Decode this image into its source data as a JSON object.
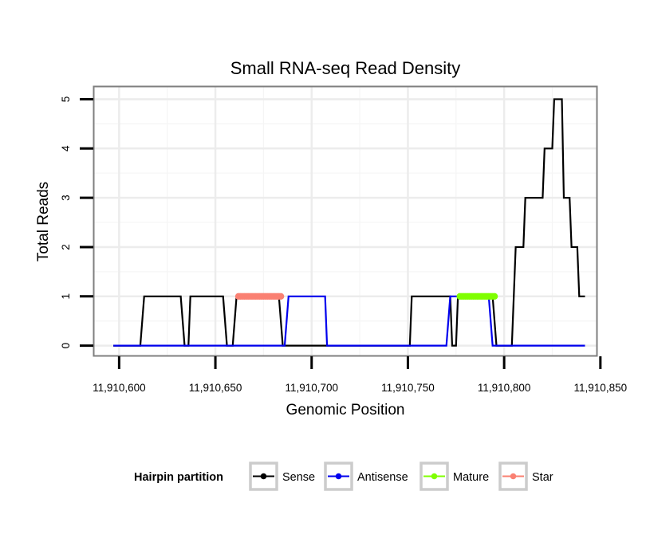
{
  "chart_data": {
    "type": "line",
    "title": "Small RNA-seq Read Density",
    "xlabel": "Genomic Position",
    "ylabel": "Total Reads",
    "xlim": [
      11910587,
      11910848
    ],
    "ylim": [
      -0.2,
      5.25
    ],
    "x_ticks": [
      11910600,
      11910650,
      11910700,
      11910750,
      11910800,
      11910850
    ],
    "x_tick_labels": [
      "11,910,600",
      "11,910,650",
      "11,910,700",
      "11,910,750",
      "11,910,800",
      "11,910,850"
    ],
    "y_ticks": [
      0,
      1,
      2,
      3,
      4,
      5
    ],
    "y_tick_labels": [
      "0",
      "1",
      "2",
      "3",
      "4",
      "5"
    ],
    "grid": true,
    "legend": {
      "title": "Hairpin partition",
      "position": "bottom",
      "entries": [
        "Sense",
        "Antisense",
        "Mature",
        "Star"
      ]
    },
    "series": [
      {
        "name": "Sense",
        "color": "#000000",
        "points": [
          [
            11910597,
            0
          ],
          [
            11910611,
            0
          ],
          [
            11910613,
            1
          ],
          [
            11910632,
            1
          ],
          [
            11910634,
            0
          ],
          [
            11910636,
            0
          ],
          [
            11910637,
            1
          ],
          [
            11910654,
            1
          ],
          [
            11910656,
            0
          ],
          [
            11910659,
            0
          ],
          [
            11910661,
            1
          ],
          [
            11910683,
            1
          ],
          [
            11910685,
            0
          ],
          [
            11910751,
            0
          ],
          [
            11910752,
            1
          ],
          [
            11910772,
            1
          ],
          [
            11910773,
            0
          ],
          [
            11910775,
            0
          ],
          [
            11910776,
            1
          ],
          [
            11910794,
            1
          ],
          [
            11910796,
            0
          ],
          [
            11910804,
            0
          ],
          [
            11910806,
            2
          ],
          [
            11910810,
            2
          ],
          [
            11910811,
            3
          ],
          [
            11910820,
            3
          ],
          [
            11910821,
            4
          ],
          [
            11910825,
            4
          ],
          [
            11910826,
            5
          ],
          [
            11910830,
            5
          ],
          [
            11910831,
            3
          ],
          [
            11910834,
            3
          ],
          [
            11910835,
            2
          ],
          [
            11910838,
            2
          ],
          [
            11910839,
            1
          ],
          [
            11910842,
            1
          ]
        ]
      },
      {
        "name": "Antisense",
        "color": "#0000ee",
        "points": [
          [
            11910597,
            0
          ],
          [
            11910686,
            0
          ],
          [
            11910688,
            1
          ],
          [
            11910707,
            1
          ],
          [
            11910708,
            0
          ],
          [
            11910770,
            0
          ],
          [
            11910772,
            1
          ],
          [
            11910792,
            1
          ],
          [
            11910794,
            0
          ],
          [
            11910842,
            0
          ]
        ]
      },
      {
        "name": "Mature",
        "color": "#7fff00",
        "points": [
          [
            11910777,
            1
          ],
          [
            11910778,
            1
          ],
          [
            11910779,
            1
          ],
          [
            11910780,
            1
          ],
          [
            11910781,
            1
          ],
          [
            11910782,
            1
          ],
          [
            11910783,
            1
          ],
          [
            11910784,
            1
          ],
          [
            11910785,
            1
          ],
          [
            11910786,
            1
          ],
          [
            11910787,
            1
          ],
          [
            11910788,
            1
          ],
          [
            11910789,
            1
          ],
          [
            11910790,
            1
          ],
          [
            11910791,
            1
          ],
          [
            11910792,
            1
          ],
          [
            11910793,
            1
          ],
          [
            11910794,
            1
          ],
          [
            11910795,
            1
          ]
        ]
      },
      {
        "name": "Star",
        "color": "#fa8072",
        "points": [
          [
            11910662,
            1
          ],
          [
            11910663,
            1
          ],
          [
            11910664,
            1
          ],
          [
            11910665,
            1
          ],
          [
            11910666,
            1
          ],
          [
            11910667,
            1
          ],
          [
            11910668,
            1
          ],
          [
            11910669,
            1
          ],
          [
            11910670,
            1
          ],
          [
            11910671,
            1
          ],
          [
            11910672,
            1
          ],
          [
            11910673,
            1
          ],
          [
            11910674,
            1
          ],
          [
            11910675,
            1
          ],
          [
            11910676,
            1
          ],
          [
            11910677,
            1
          ],
          [
            11910678,
            1
          ],
          [
            11910679,
            1
          ],
          [
            11910680,
            1
          ],
          [
            11910681,
            1
          ],
          [
            11910682,
            1
          ],
          [
            11910683,
            1
          ],
          [
            11910684,
            1
          ]
        ]
      }
    ]
  }
}
